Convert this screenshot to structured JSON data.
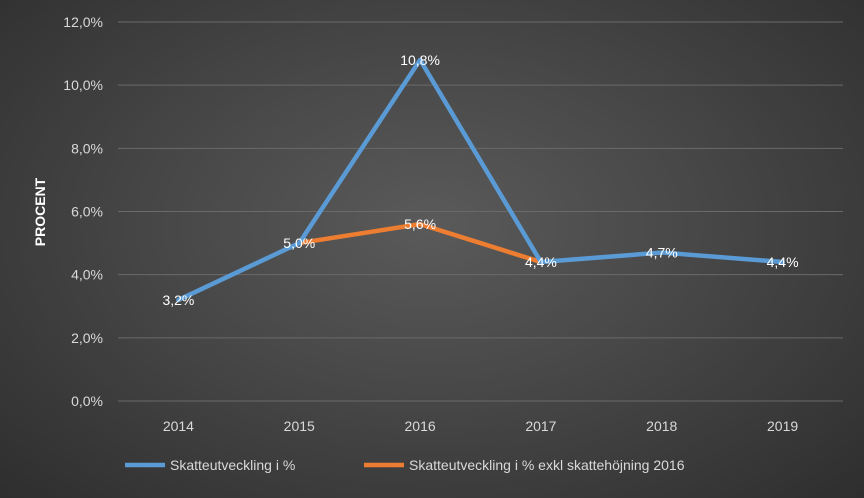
{
  "chart_data": {
    "type": "line",
    "title": "",
    "xlabel": "",
    "ylabel": "PROCENT",
    "x": [
      "2014",
      "2015",
      "2016",
      "2017",
      "2018",
      "2019"
    ],
    "ylim": [
      0,
      12
    ],
    "yticks": [
      0,
      2,
      4,
      6,
      8,
      10,
      12
    ],
    "ytick_labels": [
      "0,0%",
      "2,0%",
      "4,0%",
      "6,0%",
      "8,0%",
      "10,0%",
      "12,0%"
    ],
    "grid": true,
    "legend_position": "bottom",
    "series": [
      {
        "name": "Skatteutveckling i %",
        "color": "#5b9bd5",
        "values": [
          3.2,
          5.0,
          10.8,
          4.4,
          4.7,
          4.4
        ],
        "labels": [
          "3,2%",
          "5,0%",
          "10,8%",
          "4,4%",
          "4,7%",
          "4,4%"
        ]
      },
      {
        "name": "Skatteutveckling i % exkl skattehöjning 2016",
        "color": "#ed7d31",
        "values": [
          null,
          5.0,
          5.6,
          4.4,
          null,
          null
        ],
        "labels": [
          null,
          null,
          "5,6%",
          null,
          null,
          null
        ]
      }
    ]
  }
}
